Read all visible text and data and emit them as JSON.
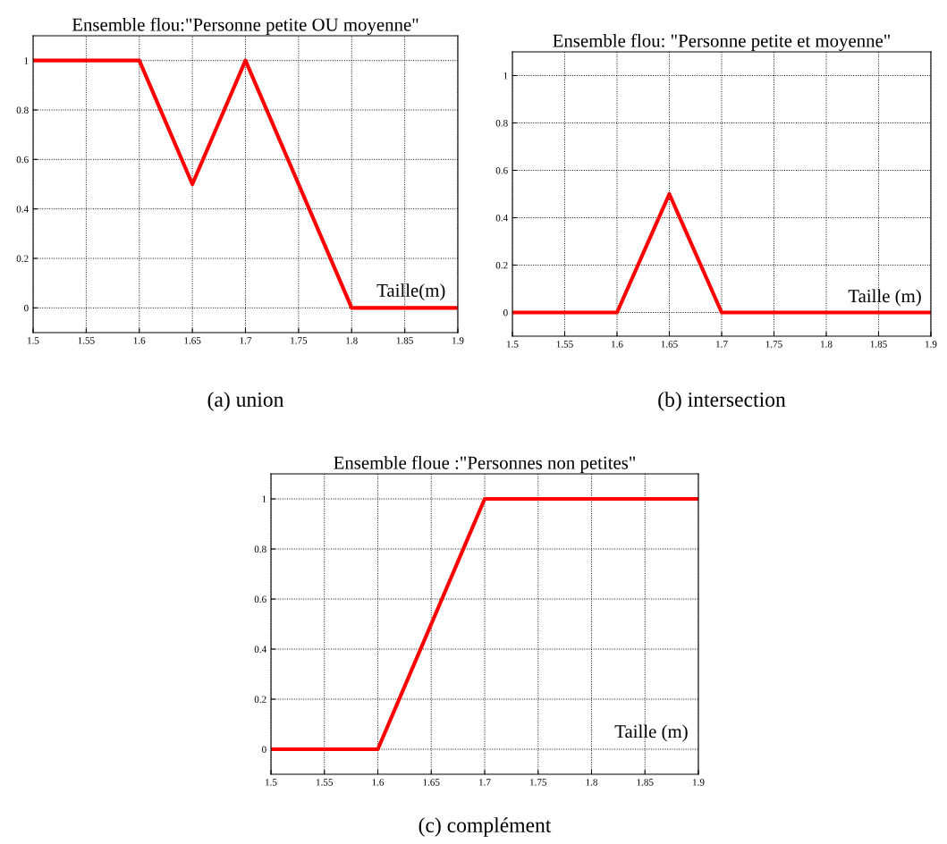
{
  "chart_data": [
    {
      "type": "line",
      "title": "Ensemble flou:\"Personne petite OU moyenne\"",
      "xlabel": "Taille(m)",
      "annotations": [
        "(a) union"
      ],
      "x": [
        1.5,
        1.6,
        1.65,
        1.7,
        1.8,
        1.9
      ],
      "series": [
        {
          "color": "#ff0000",
          "values": [
            1,
            1,
            0.5,
            1,
            0,
            0
          ]
        }
      ],
      "xlim": [
        1.5,
        1.9
      ],
      "xticks": [
        1.5,
        1.55,
        1.6,
        1.65,
        1.7,
        1.75,
        1.8,
        1.85,
        1.9
      ],
      "ylim": [
        -0.1,
        1.1
      ],
      "yticks": [
        0,
        0.2,
        0.4,
        0.6,
        0.8,
        1
      ],
      "grid": true,
      "line_style": "solid"
    },
    {
      "type": "line",
      "title": "Ensemble flou: \"Personne petite et moyenne\"",
      "xlabel": "Taille (m)",
      "annotations": [
        "(b) intersection"
      ],
      "x": [
        1.5,
        1.6,
        1.65,
        1.7,
        1.9
      ],
      "series": [
        {
          "color": "#ff0000",
          "values": [
            0,
            0,
            0.5,
            0,
            0
          ]
        }
      ],
      "xlim": [
        1.5,
        1.9
      ],
      "xticks": [
        1.5,
        1.55,
        1.6,
        1.65,
        1.7,
        1.75,
        1.8,
        1.85,
        1.9
      ],
      "ylim": [
        -0.1,
        1.1
      ],
      "yticks": [
        0,
        0.2,
        0.4,
        0.6,
        0.8,
        1
      ],
      "grid": true,
      "line_style": "solid"
    },
    {
      "type": "line",
      "title": "Ensemble floue :\"Personnes non petites\"",
      "xlabel": "Taille (m)",
      "annotations": [
        "(c) complément"
      ],
      "x": [
        1.5,
        1.6,
        1.7,
        1.9
      ],
      "series": [
        {
          "color": "#ff0000",
          "values": [
            0,
            0,
            1,
            1
          ]
        }
      ],
      "xlim": [
        1.5,
        1.9
      ],
      "xticks": [
        1.5,
        1.55,
        1.6,
        1.65,
        1.7,
        1.75,
        1.8,
        1.85,
        1.9
      ],
      "ylim": [
        -0.1,
        1.1
      ],
      "yticks": [
        0,
        0.2,
        0.4,
        0.6,
        0.8,
        1
      ],
      "grid": true,
      "line_style": "solid"
    }
  ]
}
